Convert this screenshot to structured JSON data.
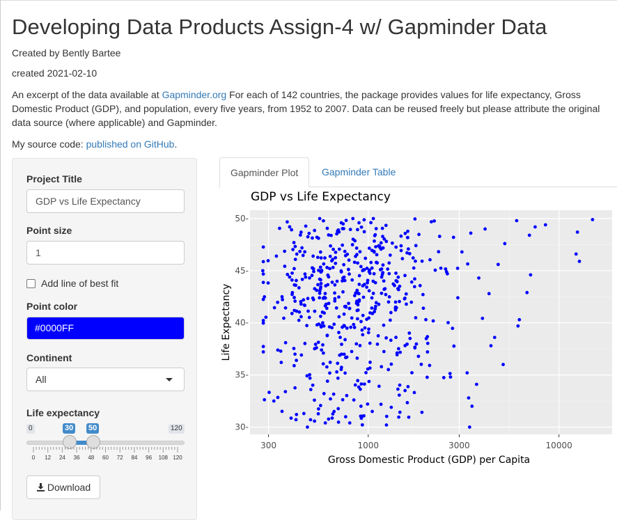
{
  "header": {
    "title": "Developing Data Products Assign-4 w/ Gapminder Data",
    "author": "Created by Bently Bartee",
    "created": "created 2021-02-10",
    "desc_before": "An excerpt of the data available at ",
    "desc_link": "Gapminder.org",
    "desc_after": " For each of 142 countries, the package provides values for life expectancy, Gross Domestic Product (GDP), and population, every five years, from 1952 to 2007. Data can be reused freely but please attribute the original data source (where applicable) and Gapminder.",
    "source_before": "My source code: ",
    "source_link": "published on GitHub",
    "source_after": "."
  },
  "sidebar": {
    "project_title_label": "Project Title",
    "project_title_value": "GDP vs Life Expectancy",
    "point_size_label": "Point size",
    "point_size_value": "1",
    "best_fit_label": "Add line of best fit",
    "best_fit_checked": false,
    "point_color_label": "Point color",
    "point_color_value": "#0000FF",
    "continent_label": "Continent",
    "continent_value": "All",
    "life_exp_label": "Life expectancy",
    "slider": {
      "min": 0,
      "max": 120,
      "from": 30,
      "to": 50,
      "min_label": "0",
      "max_label": "120",
      "from_label": "30",
      "to_label": "50",
      "tick_labels": [
        "0",
        "12",
        "24",
        "36",
        "48",
        "60",
        "72",
        "84",
        "96",
        "108",
        "120"
      ]
    },
    "download_label": "Download"
  },
  "tabs": [
    {
      "label": "Gapminder Plot",
      "active": true
    },
    {
      "label": "Gapminder Table",
      "active": false
    }
  ],
  "colors": {
    "point": "#0000FF",
    "panel": "#ebebeb",
    "link": "#337ab7",
    "slider": "#428bca"
  },
  "chart_data": {
    "type": "scatter",
    "title": "GDP vs Life Expectancy",
    "xlabel": "Gross Domestic Product (GDP) per Capita",
    "ylabel": "Life Expectancy",
    "x_scale": "log10",
    "xlim": [
      240,
      19000
    ],
    "ylim": [
      29.3,
      50.8
    ],
    "x_ticks": [
      300,
      1000,
      3000,
      10000
    ],
    "x_tick_labels": [
      "300",
      "1000",
      "3000",
      "10000"
    ],
    "y_ticks": [
      30,
      35,
      40,
      45,
      50
    ],
    "y_tick_labels": [
      "30-",
      "35-",
      "40-",
      "45-",
      "50-"
    ],
    "grid": true,
    "point_color": "#0000FF",
    "points_sample": [
      [
        15000,
        49.9
      ],
      [
        12500,
        48.7
      ],
      [
        12300,
        46.6
      ],
      [
        12800,
        45.9
      ],
      [
        8500,
        49.4
      ],
      [
        7500,
        49.2
      ],
      [
        7000,
        48.4
      ],
      [
        7100,
        44.6
      ],
      [
        6800,
        42.9
      ],
      [
        6000,
        49.8
      ],
      [
        6200,
        40.3
      ],
      [
        6100,
        39.7
      ],
      [
        5200,
        47.6
      ],
      [
        5100,
        36.0
      ],
      [
        4800,
        45.6
      ],
      [
        4600,
        38.6
      ],
      [
        4400,
        37.8
      ],
      [
        4300,
        42.8
      ],
      [
        4100,
        49.0
      ],
      [
        3800,
        44.3
      ],
      [
        3700,
        34.1
      ],
      [
        3500,
        32.0
      ],
      [
        3400,
        30.0
      ],
      [
        3450,
        48.6
      ],
      [
        3300,
        35.2
      ],
      [
        3100,
        46.8
      ],
      [
        2950,
        42.4
      ],
      [
        2800,
        48.2
      ],
      [
        2700,
        34.8
      ],
      [
        2600,
        44.7
      ],
      [
        330,
        46.4
      ],
      [
        280,
        45.0
      ],
      [
        320,
        32.5
      ],
      [
        350,
        36.2
      ],
      [
        420,
        36.4
      ],
      [
        460,
        31.3
      ],
      [
        480,
        30.0
      ],
      [
        500,
        33.6
      ],
      [
        800,
        30.4
      ],
      [
        1050,
        31.5
      ]
    ]
  }
}
